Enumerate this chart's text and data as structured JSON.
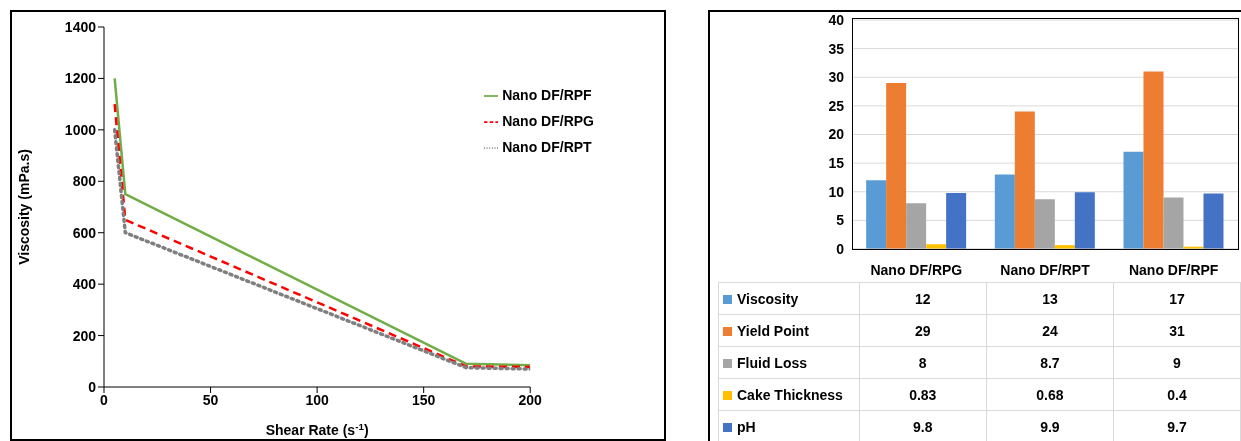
{
  "chart_data": [
    {
      "type": "line",
      "xlabel": "Shear Rate (s$^{-1}$)",
      "ylabel": "Viscosity (mPa.s)",
      "xlim": [
        0,
        200
      ],
      "xticks": [
        0,
        50,
        100,
        150,
        200
      ],
      "ylim": [
        0,
        1400
      ],
      "yticks": [
        0,
        200,
        400,
        600,
        800,
        1000,
        1200,
        1400
      ],
      "grid": false,
      "legend": "top right",
      "marker": "none",
      "series": [
        {
          "name": "Nano DF/RPF",
          "color": "#70ad47",
          "line_style": "solid",
          "x": [
            5,
            10,
            170,
            200
          ],
          "values": [
            1200,
            750,
            90,
            85
          ]
        },
        {
          "name": "Nano DF/RPG",
          "color": "#ff0000",
          "line_style": "dashed",
          "x": [
            5,
            10,
            170,
            200
          ],
          "values": [
            1100,
            650,
            80,
            78
          ]
        },
        {
          "name": "Nano DF/RPT",
          "color": "#7f7f7f",
          "line_style": "dotted",
          "x": [
            5,
            10,
            170,
            200
          ],
          "values": [
            1000,
            600,
            75,
            70
          ]
        }
      ]
    },
    {
      "type": "bar",
      "categories": [
        "Nano DF/RPG",
        "Nano DF/RPT",
        "Nano DF/RPF"
      ],
      "ylim": [
        0,
        40
      ],
      "yticks": [
        0,
        5,
        10,
        15,
        20,
        25,
        30,
        35,
        40
      ],
      "grid": "y",
      "legend": "bottom",
      "data_labels": true,
      "series": [
        {
          "name": "Viscosity",
          "color": "#5b9bd5",
          "values": [
            12,
            13,
            17
          ]
        },
        {
          "name": "Yield Point",
          "color": "#ed7d31",
          "values": [
            29,
            24,
            31
          ]
        },
        {
          "name": "Fluid Loss",
          "color": "#a5a5a5",
          "values": [
            8,
            8.7,
            9
          ]
        },
        {
          "name": "Cake Thickness",
          "color": "#ffc000",
          "values": [
            0.83,
            0.68,
            0.4
          ]
        },
        {
          "name": "pH",
          "color": "#4472c4",
          "values": [
            9.8,
            9.9,
            9.7
          ]
        }
      ]
    }
  ]
}
